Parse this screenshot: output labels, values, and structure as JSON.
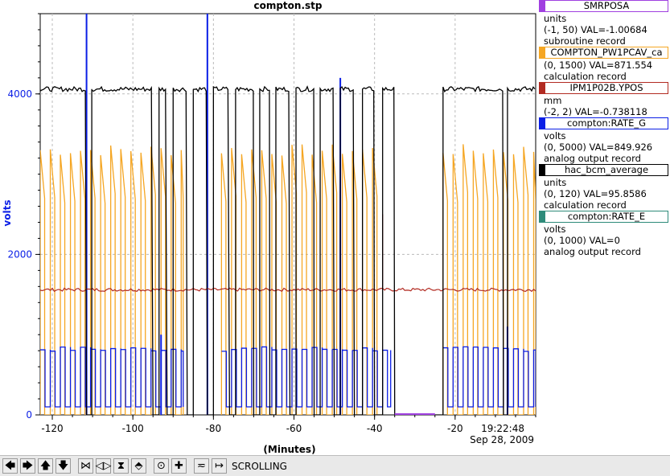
{
  "window": {
    "title": "compton.stp"
  },
  "legend": [
    {
      "name": "SMRPOSA",
      "color": "#a040e0",
      "units": "units",
      "range_val": "(-1, 50) VAL=-1.00684",
      "rtype": "subroutine record"
    },
    {
      "name": "COMPTON_PW1PCAV_ca",
      "color": "#f5a623",
      "units": "",
      "range_val": "(0, 1500) VAL=871.554",
      "rtype": "calculation record"
    },
    {
      "name": "IPM1P02B.YPOS",
      "color": "#b22b22",
      "units": "mm",
      "range_val": "(-2, 2) VAL=-0.738118",
      "rtype": ""
    },
    {
      "name": "compton:RATE_G",
      "color": "#0a1ee6",
      "units": "volts",
      "range_val": "(0, 5000) VAL=849.926",
      "rtype": "analog output record"
    },
    {
      "name": "hac_bcm_average",
      "color": "#000000",
      "units": "units",
      "range_val": "(0, 120) VAL=95.8586",
      "rtype": "calculation record"
    },
    {
      "name": "compton:RATE_E",
      "color": "#2e8b7a",
      "units": "volts",
      "range_val": "(0, 1000) VAL=0",
      "rtype": "analog output record"
    }
  ],
  "toolbar": {
    "buttons": [
      {
        "name": "scroll-left-button",
        "glyph": "🡄"
      },
      {
        "name": "scroll-right-button",
        "glyph": "🡆"
      },
      {
        "name": "scroll-up-button",
        "glyph": "🡅"
      },
      {
        "name": "scroll-down-button",
        "glyph": "🡇"
      },
      {
        "name": "expand-horizontal-button",
        "glyph": "⋈"
      },
      {
        "name": "compress-horizontal-button",
        "glyph": "◁▷"
      },
      {
        "name": "expand-vertical-button",
        "glyph": "⧗"
      },
      {
        "name": "compress-vertical-button",
        "glyph": "⬘"
      },
      {
        "name": "record-button",
        "glyph": "⊙"
      },
      {
        "name": "add-button",
        "glyph": "✚"
      },
      {
        "name": "zoom-fit-button",
        "glyph": "≂"
      },
      {
        "name": "scroll-mode-button",
        "glyph": "↦"
      }
    ],
    "mode_label": "SCROLLING"
  },
  "chart_data": {
    "type": "line",
    "title": "compton.stp",
    "xlabel": "(Minutes)",
    "ylabel": "volts",
    "xlim": [
      -123,
      0
    ],
    "ylim": [
      0,
      5000
    ],
    "x_ticks": [
      -120,
      -100,
      -80,
      -60,
      -40,
      -20
    ],
    "x_tick_labels": [
      "-120",
      "-100",
      "-80",
      "-60",
      "-40",
      "-20"
    ],
    "y_ticks": [
      0,
      2000,
      4000
    ],
    "y_tick_labels": [
      "0",
      "2000",
      "4000"
    ],
    "grid": true,
    "time_label": "19:22:48",
    "date_label": "Sep 28, 2009",
    "series": [
      {
        "name": "hac_bcm_average",
        "color": "#000000",
        "high": 4060,
        "low": 0,
        "dips": [
          [
            -111.5,
            -110.2
          ],
          [
            -95,
            -93.5
          ],
          [
            -91.5,
            -90
          ],
          [
            -86.5,
            -85
          ],
          [
            -81.5,
            -80
          ],
          [
            -76,
            -74.5
          ],
          [
            -70,
            -68.5
          ],
          [
            -66,
            -64.5
          ],
          [
            -61,
            -59.5
          ],
          [
            -55,
            -53.5
          ],
          [
            -50,
            -48.5
          ],
          [
            -45,
            -43
          ],
          [
            -40,
            -38
          ],
          [
            -35,
            -23
          ],
          [
            -8,
            -7
          ]
        ],
        "segments": [
          [
            -123,
            4060
          ],
          [
            0,
            4060
          ]
        ]
      },
      {
        "name": "COMPTON_PW1PCAV_ca",
        "color": "#f5a623",
        "high": 3300,
        "low": 0,
        "segments": [
          [
            -123,
            -87.5
          ],
          [
            -78,
            -38
          ],
          [
            -23,
            0
          ]
        ]
      },
      {
        "name": "IPM1P02B.YPOS",
        "color": "#b22b22",
        "level": 1560,
        "segments": [
          [
            -123,
            0
          ]
        ]
      },
      {
        "name": "compton:RATE_G",
        "color": "#0a1ee6",
        "high": 820,
        "low": 100,
        "segments": [
          [
            -123,
            -87.5
          ],
          [
            -78,
            -36
          ],
          [
            -23,
            0
          ]
        ],
        "spikes": [
          [
            -111.5,
            5000
          ],
          [
            -81.5,
            5000
          ],
          [
            -48.5,
            4200
          ],
          [
            -93,
            1000
          ],
          [
            -7,
            1100
          ]
        ]
      },
      {
        "name": "compton:RATE_E",
        "color": "#2e8b7a",
        "level": 0,
        "segments": [
          [
            -123,
            0
          ]
        ]
      }
    ]
  }
}
